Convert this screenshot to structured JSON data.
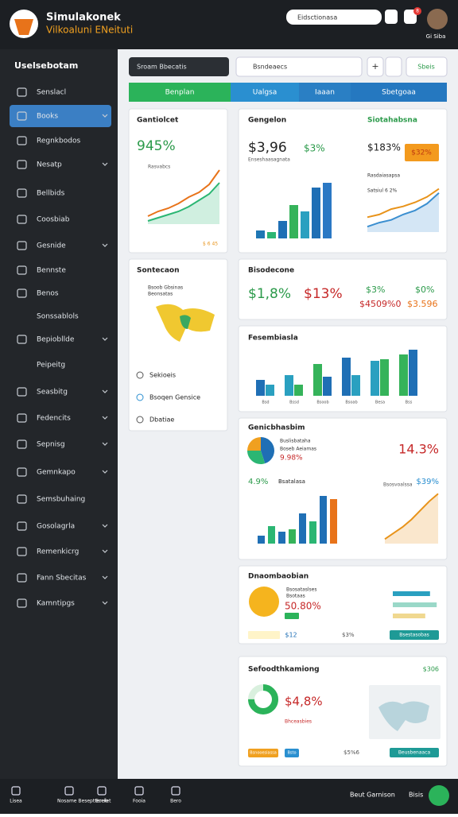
{
  "header": {
    "title": "Simulakonek",
    "subtitle": "Vilkoaluni ENeituti",
    "search": "Eidsctionasa",
    "badge": "8",
    "user": "Gi Siba"
  },
  "sidebar": {
    "heading": "Uselsebotam",
    "items": [
      "Senslacl",
      "Books",
      "Regnkbodos",
      "Nesatp",
      "Bellbids",
      "Coosbiab",
      "Gesnide",
      "Bennste",
      "Benos",
      "Sonssablols",
      "Bepiobllde",
      "Peipeitg",
      "Seasbitg",
      "Fedencits",
      "Sepnisg",
      "Gemnkapo",
      "Semsbuhaing",
      "Gosolagrla",
      "Remenkicrg",
      "Fann Sbecitas",
      "Kamntipgs"
    ]
  },
  "toolbar": {
    "filter": "Sroam Bbecatis",
    "search": "Bsndeaecs",
    "add": "+",
    "button": "Sbeis"
  },
  "tabs": [
    "Benplan",
    "Ualgsa",
    "Iaaan",
    "Sbetgoaa"
  ],
  "cards": {
    "growth": {
      "title": "Gantiolcet",
      "value": "945%",
      "caption": "Rasvabcs",
      "footer": "$ 6 45",
      "lines": [
        {
          "color": "#e8731a",
          "values": [
            10,
            16,
            20,
            26,
            34,
            40,
            50,
            68
          ]
        },
        {
          "color": "#2bb673",
          "values": [
            4,
            8,
            12,
            16,
            22,
            30,
            38,
            52
          ]
        }
      ]
    },
    "revenue": {
      "title": "Gengelon",
      "value": "$3,96",
      "change": "$3%",
      "caption": "Enseshaasagnata",
      "bars": [
        {
          "color": "#1f77b4",
          "value": 10
        },
        {
          "color": "#2bb673",
          "value": 8
        },
        {
          "color": "#1f6fb5",
          "value": 22
        },
        {
          "color": "#35b35a",
          "value": 42
        },
        {
          "color": "#2aa0c0",
          "value": 34
        },
        {
          "color": "#1f6fb5",
          "value": 64
        },
        {
          "color": "#2a78c4",
          "value": 70
        }
      ]
    },
    "stats": {
      "title": "Siotahabsna",
      "value": "$183%",
      "badge": "$32%",
      "caption": "Rasdaiasapsa",
      "note": "Satsiul 6 2%",
      "lines": [
        {
          "color": "#e8931a",
          "values": [
            22,
            26,
            34,
            38,
            44,
            52,
            64
          ]
        },
        {
          "color": "#3b8fd0",
          "values": [
            8,
            14,
            18,
            26,
            32,
            42,
            58
          ]
        }
      ]
    },
    "regions": {
      "title": "Sontecaon",
      "legend": [
        "Bsoob Gbsinas",
        "Beonsatas"
      ],
      "links": [
        "Sekioeis",
        "Bsoqen Gensice",
        "Dbatiae"
      ]
    },
    "metrics": {
      "title": "Bisodecone",
      "values": [
        "$1,8%",
        "$13%",
        "$3%",
        "$0%",
        "$4509%0",
        "$3.596"
      ]
    },
    "compare": {
      "title": "Fesembiasla",
      "labels": [
        "Bsd",
        "Bssd",
        "Bsoob",
        "Bsoab",
        "Besa",
        "Bss"
      ],
      "colors": [
        "#1f6fb5",
        "#2aa0c0",
        "#35b35a"
      ],
      "groups": [
        [
          20,
          14
        ],
        [
          26,
          14
        ],
        [
          40,
          24
        ],
        [
          48,
          26
        ],
        [
          44,
          46
        ],
        [
          52,
          58
        ]
      ]
    },
    "breakdown": {
      "title": "Genicbhasbim",
      "legend": [
        "Buslisbataha",
        "Boseb Aeiamas"
      ],
      "big": "14.3%",
      "pct": "9.98%",
      "left_value": "4.9%",
      "left_label": "Bsatalasa",
      "right_label": "Bsosvoalssa",
      "right_value": "$39%",
      "pie": [
        {
          "color": "#1f6fb5",
          "value": 45
        },
        {
          "color": "#2bb673",
          "value": 30
        },
        {
          "color": "#f0a020",
          "value": 25
        }
      ],
      "bars": [
        {
          "color": "#1f6fb5",
          "value": 10
        },
        {
          "color": "#2bb673",
          "value": 22
        },
        {
          "color": "#1f6fb5",
          "value": 15
        },
        {
          "color": "#35b35a",
          "value": 18
        },
        {
          "color": "#1f6fb5",
          "value": 38
        },
        {
          "color": "#2bb673",
          "value": 28
        },
        {
          "color": "#1f6fb5",
          "value": 60
        },
        {
          "color": "#e8731a",
          "value": 56
        }
      ],
      "area": [
        6,
        14,
        22,
        32,
        44,
        56,
        66
      ]
    },
    "gauge": {
      "title": "Dnaombaobian",
      "value": "50.80%",
      "legend": [
        "Bsosataslses",
        "Bsotaas"
      ],
      "chip": "$12",
      "stat": "$3%",
      "button": "Bsestasobas",
      "bars": [
        {
          "color": "#2aa0c0",
          "value": 78
        },
        {
          "color": "#9ad8c8",
          "value": 92
        },
        {
          "color": "#f0d890",
          "value": 68
        }
      ]
    },
    "summary": {
      "title": "Sefoodthkamiong",
      "badge": "$306",
      "value": "$4,8%",
      "caption": "Bhceasbies",
      "donut": 75,
      "button": "Bsnooesiassa",
      "chip": "Bsto",
      "stat": "$5%6",
      "link": "Beusbenaaca"
    }
  },
  "bottom_bar": {
    "items": [
      "Lisea",
      "Nosame Beseptterefet",
      "Eccio",
      "Fooia",
      "Bero"
    ],
    "account": "Beut Garnison",
    "status": "Bisis"
  }
}
